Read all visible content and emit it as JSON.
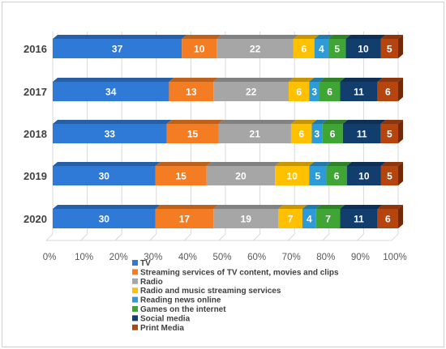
{
  "chart_data": {
    "type": "bar",
    "orientation": "horizontal",
    "stacked": true,
    "percent_stacked": true,
    "style": "3d",
    "title": "",
    "xlabel": "",
    "ylabel": "",
    "xlim": [
      0,
      100
    ],
    "x_ticks": [
      "0%",
      "10%",
      "20%",
      "30%",
      "40%",
      "50%",
      "60%",
      "70%",
      "80%",
      "90%",
      "100%"
    ],
    "grid": "vertical",
    "legend_position": "bottom",
    "categories": [
      "2016",
      "2017",
      "2018",
      "2019",
      "2020"
    ],
    "series": [
      {
        "name": "TV",
        "color": "#2f7ad6",
        "values": [
          37,
          34,
          33,
          30,
          30
        ]
      },
      {
        "name": "Streaming services of TV content, movies and clips",
        "color": "#f47d23",
        "values": [
          10,
          13,
          15,
          15,
          17
        ]
      },
      {
        "name": "Radio",
        "color": "#a6a6a6",
        "values": [
          22,
          22,
          21,
          20,
          19
        ]
      },
      {
        "name": "Radio and music streaming services",
        "color": "#ffc000",
        "values": [
          6,
          6,
          6,
          10,
          7
        ]
      },
      {
        "name": "Reading news online",
        "color": "#2e9bd9",
        "values": [
          4,
          3,
          3,
          5,
          4
        ]
      },
      {
        "name": "Games on the internet",
        "color": "#3fa535",
        "values": [
          5,
          6,
          6,
          6,
          7
        ]
      },
      {
        "name": "Social media",
        "color": "#123e6e",
        "values": [
          10,
          11,
          11,
          10,
          11
        ]
      },
      {
        "name": "Print Media",
        "color": "#b5440f",
        "values": [
          5,
          6,
          5,
          5,
          6
        ]
      }
    ]
  }
}
